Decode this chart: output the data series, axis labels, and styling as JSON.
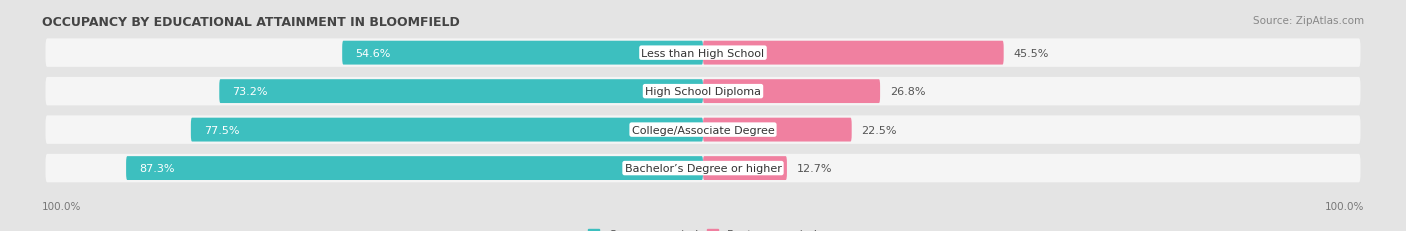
{
  "title": "OCCUPANCY BY EDUCATIONAL ATTAINMENT IN BLOOMFIELD",
  "source": "Source: ZipAtlas.com",
  "categories": [
    "Less than High School",
    "High School Diploma",
    "College/Associate Degree",
    "Bachelor’s Degree or higher"
  ],
  "owner_pct": [
    54.6,
    73.2,
    77.5,
    87.3
  ],
  "renter_pct": [
    45.5,
    26.8,
    22.5,
    12.7
  ],
  "owner_color": "#3dbfbf",
  "renter_color": "#f080a0",
  "background_color": "#e4e4e4",
  "bar_bg_color": "#f5f5f5",
  "title_fontsize": 9,
  "label_fontsize": 8,
  "pct_fontsize": 8,
  "legend_fontsize": 8,
  "source_fontsize": 7.5,
  "axis_label_fontsize": 7.5
}
